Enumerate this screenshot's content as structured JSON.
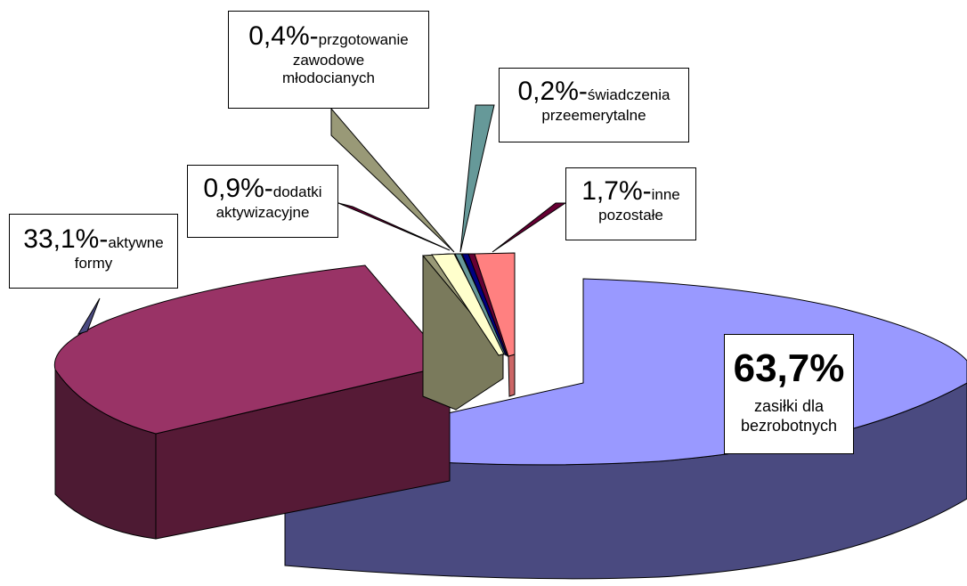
{
  "chart_data": {
    "type": "pie",
    "three_d": true,
    "exploded": true,
    "slices": [
      {
        "pct": "63,7%",
        "value": 63.7,
        "label": "zasiłki dla bezrobotnych",
        "color": "#9999ff"
      },
      {
        "pct": "33,1%",
        "value": 33.1,
        "label": "aktywne formy",
        "color": "#993366"
      },
      {
        "pct": "0,9%",
        "value": 0.9,
        "label": "dodatki aktywizacyjne",
        "color": "#660033"
      },
      {
        "pct": "0,4%",
        "value": 0.4,
        "label": "przgotowanie zawodowe młodocianych",
        "color": "#999977"
      },
      {
        "pct": "0,2%",
        "value": 0.2,
        "label": "świadczenia przeemerytalne",
        "color": "#669999"
      },
      {
        "pct": "1,7%",
        "value": 1.7,
        "label": "inne pozostałe",
        "color": "#ff8080"
      }
    ],
    "extra_colors": {
      "small_cream": "#ffffcc",
      "small_navy": "#000080"
    }
  },
  "labels": {
    "main": {
      "pct": "63,7%",
      "line1": "zasiłki dla",
      "line2": "bezrobotnych"
    },
    "aktywne": {
      "pct": "33,1%-",
      "t1": "aktywne",
      "t2": "formy"
    },
    "dodatki": {
      "pct": "0,9%-",
      "t1": "dodatki",
      "t2": "aktywizacyjne"
    },
    "przygot": {
      "pct": "0,4%-",
      "t1": "przgotowanie",
      "t2": "zawodowe",
      "t3": "młodocianych"
    },
    "swiadcz": {
      "pct": "0,2%-",
      "t1": "świadczenia",
      "t2": "przeemerytalne"
    },
    "inne": {
      "pct": "1,7%-",
      "t1": "inne",
      "t2": "pozostałe"
    }
  }
}
